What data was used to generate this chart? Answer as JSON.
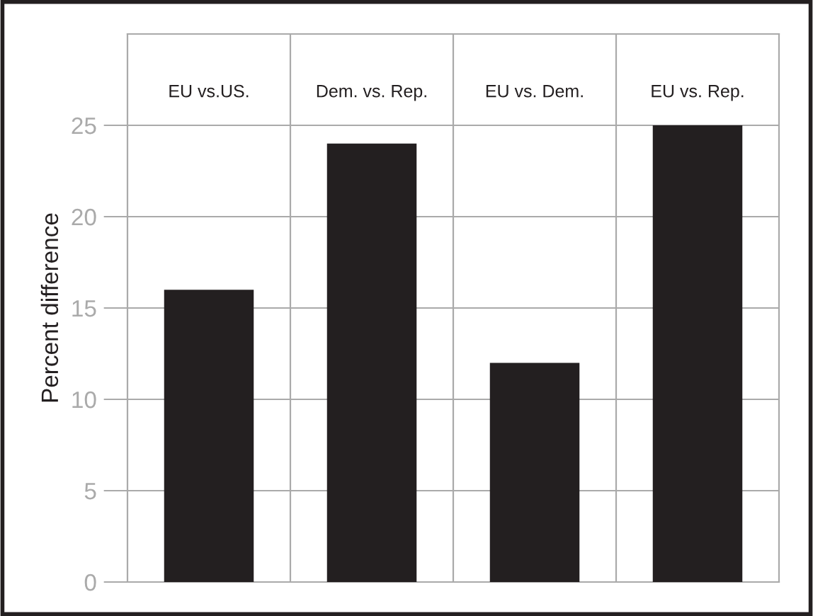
{
  "chart_data": {
    "type": "bar",
    "ylabel": "Percent difference",
    "categories": [
      "EU vs.US.",
      "Dem. vs. Rep.",
      "EU vs. Dem.",
      "EU vs. Rep."
    ],
    "values": [
      16,
      24,
      12,
      25
    ],
    "color": "#231f20",
    "ylim": [
      0,
      30
    ],
    "yticks": [
      0,
      5,
      10,
      15,
      20,
      25
    ],
    "grid": true
  }
}
